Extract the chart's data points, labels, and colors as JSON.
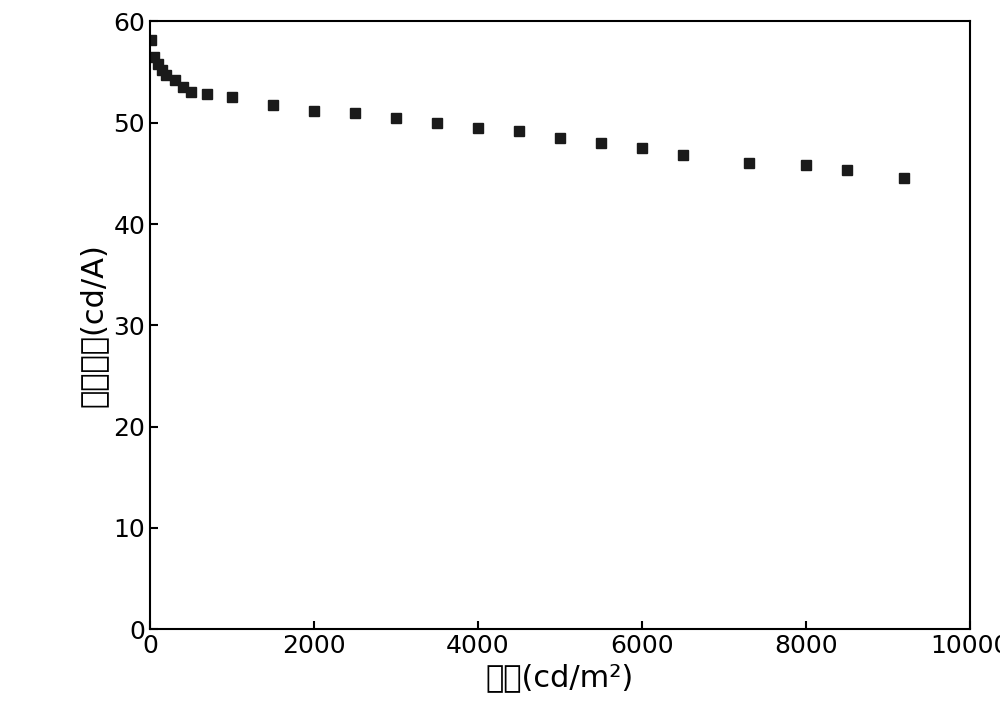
{
  "x": [
    10,
    50,
    100,
    150,
    200,
    300,
    400,
    500,
    700,
    1000,
    1500,
    2000,
    2500,
    3000,
    3500,
    4000,
    4500,
    5000,
    5500,
    6000,
    6500,
    7300,
    8000,
    8500,
    9200
  ],
  "y": [
    58.2,
    56.5,
    55.8,
    55.2,
    54.7,
    54.2,
    53.5,
    53.0,
    52.8,
    52.5,
    51.8,
    51.2,
    51.0,
    50.5,
    50.0,
    49.5,
    49.2,
    48.5,
    48.0,
    47.5,
    46.8,
    46.0,
    45.8,
    45.3,
    44.5
  ],
  "marker": "s",
  "marker_color": "#1a1a1a",
  "marker_size": 7,
  "xlim": [
    0,
    10000
  ],
  "ylim": [
    0,
    60
  ],
  "xticks": [
    0,
    2000,
    4000,
    6000,
    8000,
    10000
  ],
  "yticks": [
    0,
    10,
    20,
    30,
    40,
    50,
    60
  ],
  "xlabel": "亮度(cd/m²)",
  "ylabel": "电流效率(cd/A)",
  "xlabel_fontsize": 22,
  "ylabel_fontsize": 22,
  "tick_fontsize": 18,
  "background_color": "#ffffff",
  "figure_width": 10.0,
  "figure_height": 7.15
}
